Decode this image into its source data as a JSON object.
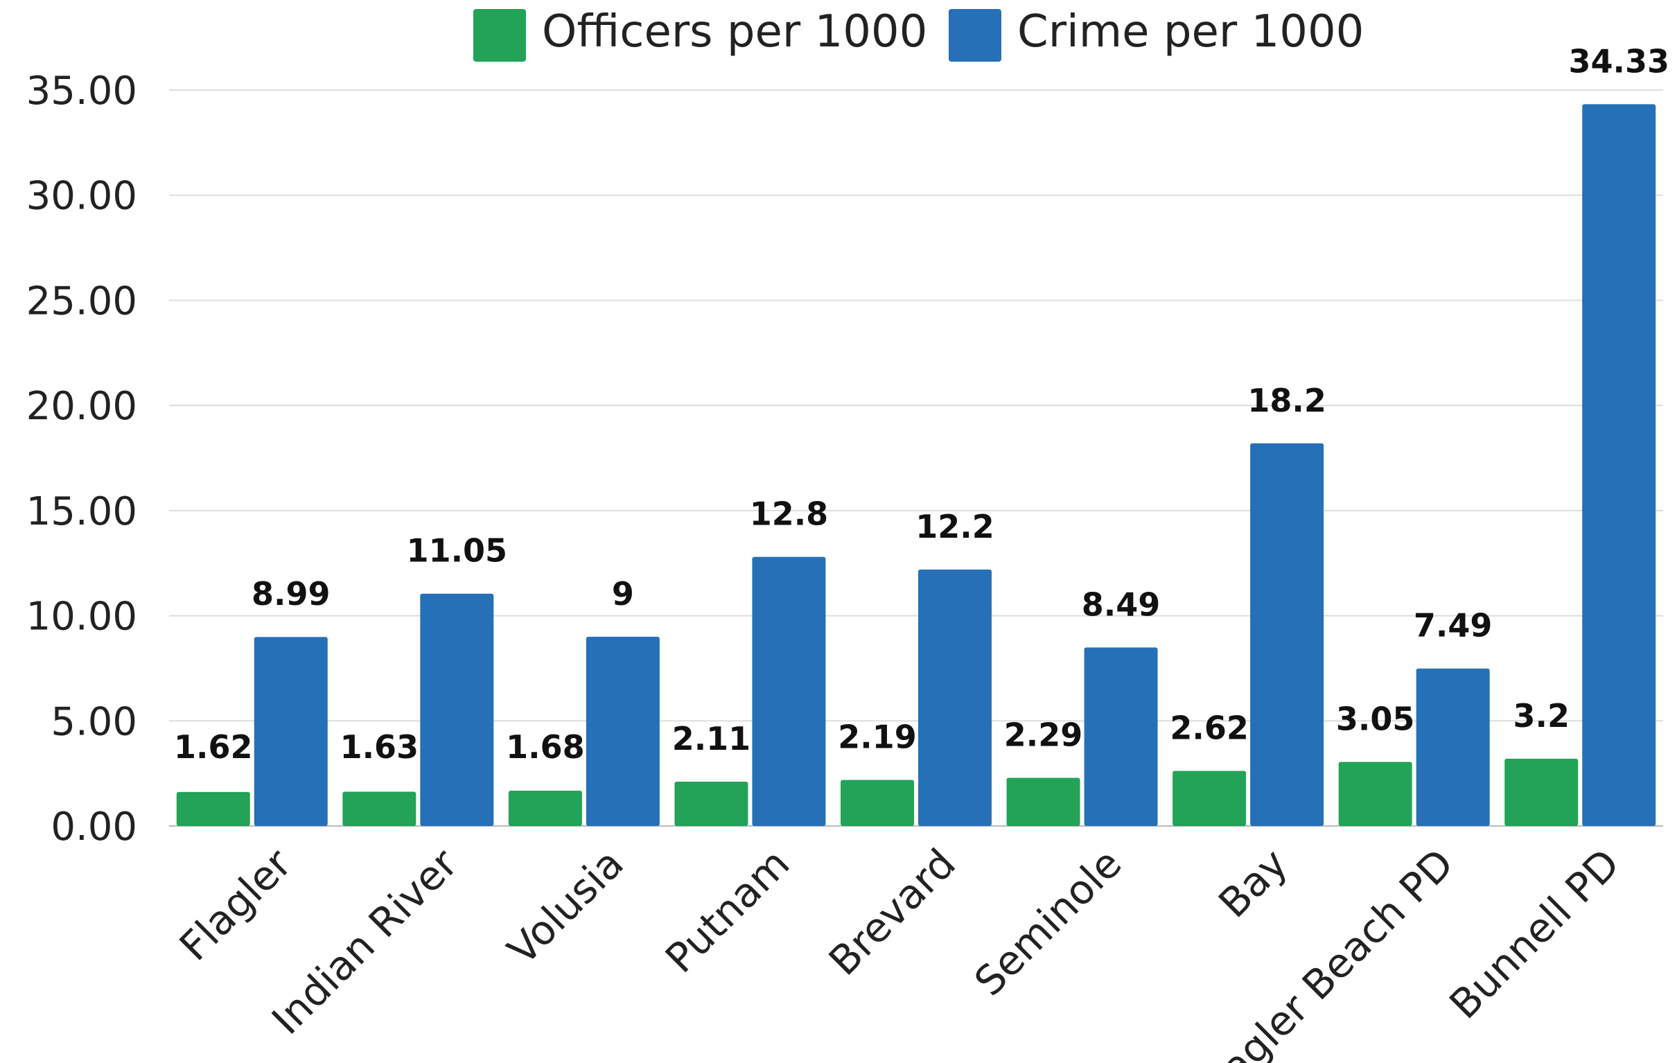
{
  "chart_data": {
    "type": "bar",
    "title": "",
    "xlabel": "",
    "ylabel": "",
    "categories": [
      "Flagler",
      "Indian River",
      "Volusia",
      "Putnam",
      "Brevard",
      "Seminole",
      "Bay",
      "Flagler Beach PD",
      "Bunnell PD"
    ],
    "series": [
      {
        "name": "Officers per 1000",
        "color": "#22a358",
        "values": [
          1.62,
          1.63,
          1.68,
          2.11,
          2.19,
          2.29,
          2.62,
          3.05,
          3.2
        ],
        "labels": [
          "1.62",
          "1.63",
          "1.68",
          "2.11",
          "2.19",
          "2.29",
          "2.62",
          "3.05",
          "3.2"
        ]
      },
      {
        "name": "Crime per 1000",
        "color": "#2670b8",
        "values": [
          8.99,
          11.05,
          9,
          12.8,
          12.2,
          8.49,
          18.2,
          7.49,
          34.33
        ],
        "labels": [
          "8.99",
          "11.05",
          "9",
          "12.8",
          "12.2",
          "8.49",
          "18.2",
          "7.49",
          "34.33"
        ]
      }
    ],
    "ylim": [
      0,
      35
    ],
    "yticks": [
      "0.00",
      "5.00",
      "10.00",
      "15.00",
      "20.00",
      "25.00",
      "30.00",
      "35.00"
    ],
    "grid": true,
    "legend_position": "top-center"
  }
}
